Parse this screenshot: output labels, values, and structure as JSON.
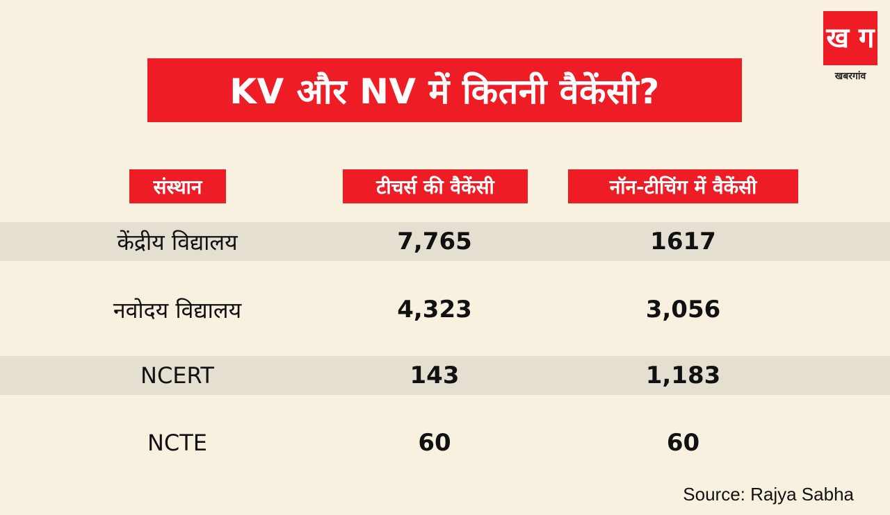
{
  "title": "KV और NV में कितनी वैकेंसी?",
  "logo": {
    "mark": "ख ग",
    "name": "खबरगांव"
  },
  "source": "Source: Rajya Sabha",
  "chart_data": {
    "type": "table",
    "title": "KV और NV में कितनी वैकेंसी?",
    "columns": [
      "संस्थान",
      "टीचर्स की वैकेंसी",
      "नॉन-टीचिंग में वैकेंसी"
    ],
    "rows": [
      {
        "institution": "केंद्रीय विद्यालय",
        "teachers": "7,765",
        "non_teaching": "1617"
      },
      {
        "institution": "नवोदय विद्यालय",
        "teachers": "4,323",
        "non_teaching": "3,056"
      },
      {
        "institution": "NCERT",
        "teachers": "143",
        "non_teaching": "1,183"
      },
      {
        "institution": "NCTE",
        "teachers": "60",
        "non_teaching": "60"
      }
    ],
    "row_shading": [
      true,
      false,
      true,
      false
    ],
    "accent_color": "#ee1c25",
    "background_color": "#f8f1e0",
    "shaded_row_color": "#e4dfd0"
  }
}
